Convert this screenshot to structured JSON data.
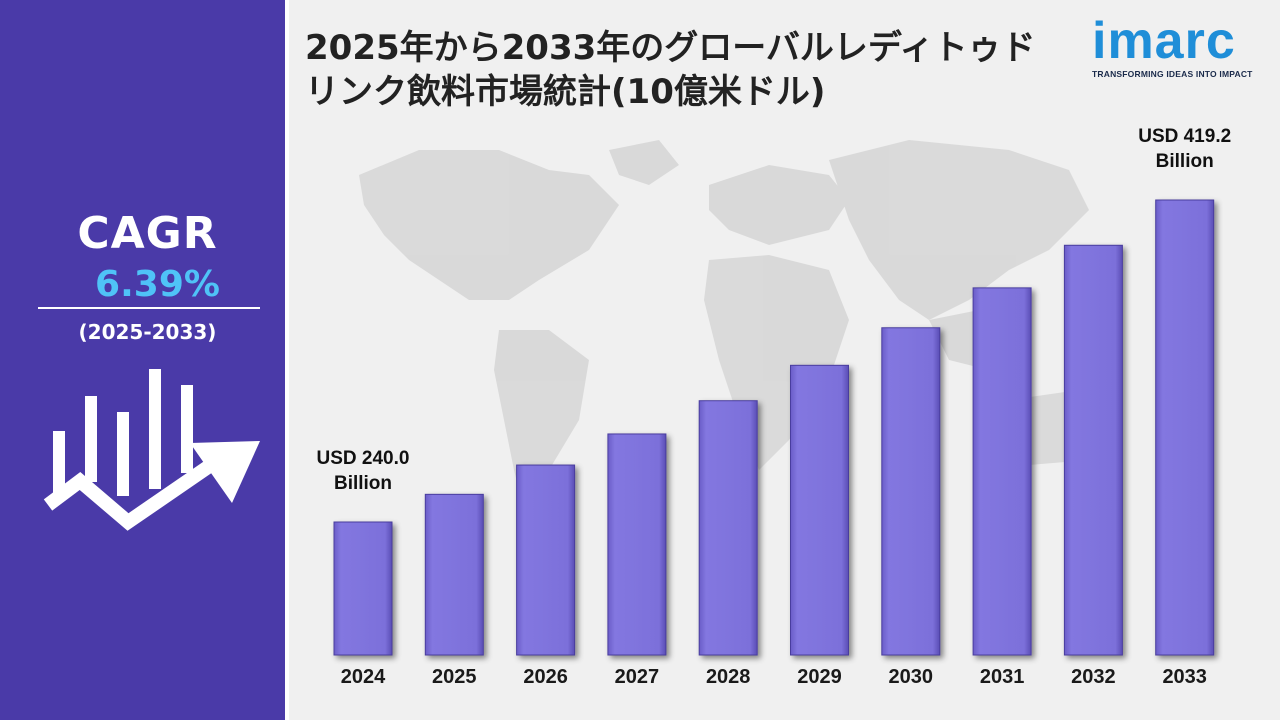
{
  "title": "2025年から2033年のグローバルレディトゥドリンク飲料市場統計(10億米ドル)",
  "title_lines": [
    "2025年から2033年のグローバルレディトゥド",
    "リンク飲料市場統計(10億米ドル)"
  ],
  "logo": {
    "word": "imarc",
    "tagline": "TRANSFORMING IDEAS INTO IMPACT"
  },
  "cagr": {
    "label": "CAGR",
    "value": "6.39%",
    "period": "(2025-2033)"
  },
  "colors": {
    "panel": "#4a3aa8",
    "bar": "#7b6fd9",
    "accent": "#4fc3f7",
    "logo": "#1f8ed8"
  },
  "chart_data": {
    "type": "bar",
    "categories": [
      "2024",
      "2025",
      "2026",
      "2027",
      "2028",
      "2029",
      "2030",
      "2031",
      "2032",
      "2033"
    ],
    "values": [
      240.0,
      255.4,
      271.7,
      289.0,
      307.5,
      327.2,
      348.1,
      370.3,
      394.0,
      419.2
    ],
    "annotations": [
      {
        "category": "2024",
        "lines": [
          "USD 240.0",
          "Billion"
        ]
      },
      {
        "category": "2033",
        "lines": [
          "USD 419.2",
          "Billion"
        ]
      }
    ],
    "ylim": [
      0,
      450
    ],
    "unit": "USD Billion"
  }
}
